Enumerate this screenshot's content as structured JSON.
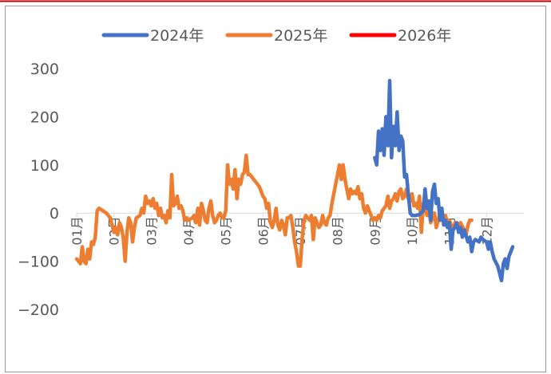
{
  "chart_data": {
    "type": "line",
    "title": "",
    "xlabel": "",
    "ylabel": "",
    "ylim": [
      -200,
      300
    ],
    "yticks": [
      300,
      200,
      100,
      0,
      -100,
      -200
    ],
    "ytick_labels": [
      "300",
      "200",
      "100",
      "0",
      "−100",
      "−200"
    ],
    "grid": false,
    "legend_position": "top",
    "x_domain": [
      0,
      12
    ],
    "month_labels": [
      "01月",
      "02月",
      "03月",
      "04月",
      "05月",
      "06月",
      "07月",
      "08月",
      "09月",
      "10月",
      "11月",
      "12月"
    ],
    "series": [
      {
        "name": "2024年",
        "color": "#4472C4",
        "points": [
          [
            8.0,
            115
          ],
          [
            8.05,
            100
          ],
          [
            8.1,
            170
          ],
          [
            8.15,
            130
          ],
          [
            8.2,
            175
          ],
          [
            8.25,
            120
          ],
          [
            8.3,
            200
          ],
          [
            8.35,
            140
          ],
          [
            8.4,
            275
          ],
          [
            8.45,
            115
          ],
          [
            8.5,
            180
          ],
          [
            8.55,
            140
          ],
          [
            8.6,
            210
          ],
          [
            8.65,
            130
          ],
          [
            8.7,
            160
          ],
          [
            8.75,
            150
          ],
          [
            8.8,
            75
          ],
          [
            8.85,
            80
          ],
          [
            8.9,
            40
          ],
          [
            8.95,
            0
          ],
          [
            9.0,
            -5
          ],
          [
            9.1,
            -5
          ],
          [
            9.2,
            -3
          ],
          [
            9.3,
            5
          ],
          [
            9.35,
            50
          ],
          [
            9.4,
            10
          ],
          [
            9.45,
            25
          ],
          [
            9.5,
            -15
          ],
          [
            9.55,
            45
          ],
          [
            9.6,
            60
          ],
          [
            9.65,
            20
          ],
          [
            9.7,
            30
          ],
          [
            9.75,
            -15
          ],
          [
            9.8,
            10
          ],
          [
            9.85,
            -25
          ],
          [
            9.9,
            -15
          ],
          [
            9.95,
            -30
          ],
          [
            10.0,
            -20
          ],
          [
            10.05,
            -75
          ],
          [
            10.1,
            -35
          ],
          [
            10.15,
            -30
          ],
          [
            10.2,
            -20
          ],
          [
            10.25,
            -40
          ],
          [
            10.3,
            -30
          ],
          [
            10.35,
            -50
          ],
          [
            10.4,
            -35
          ],
          [
            10.5,
            -60
          ],
          [
            10.55,
            -50
          ],
          [
            10.6,
            -80
          ],
          [
            10.65,
            -60
          ],
          [
            10.7,
            -55
          ],
          [
            10.8,
            -60
          ],
          [
            10.85,
            -50
          ],
          [
            10.9,
            -55
          ],
          [
            11.0,
            -60
          ],
          [
            11.05,
            -75
          ],
          [
            11.1,
            -60
          ],
          [
            11.15,
            -80
          ],
          [
            11.2,
            -95
          ],
          [
            11.3,
            -110
          ],
          [
            11.4,
            -140
          ],
          [
            11.45,
            -105
          ],
          [
            11.5,
            -95
          ],
          [
            11.55,
            -115
          ],
          [
            11.6,
            -90
          ],
          [
            11.65,
            -80
          ],
          [
            11.7,
            -70
          ]
        ]
      },
      {
        "name": "2025年",
        "color": "#ED7D31",
        "points": [
          [
            0.0,
            -95
          ],
          [
            0.1,
            -105
          ],
          [
            0.15,
            -70
          ],
          [
            0.2,
            -100
          ],
          [
            0.25,
            -105
          ],
          [
            0.3,
            -75
          ],
          [
            0.35,
            -95
          ],
          [
            0.4,
            -60
          ],
          [
            0.45,
            -65
          ],
          [
            0.5,
            -50
          ],
          [
            0.55,
            5
          ],
          [
            0.6,
            10
          ],
          [
            0.7,
            5
          ],
          [
            0.8,
            0
          ],
          [
            0.9,
            -10
          ],
          [
            0.95,
            -25
          ],
          [
            1.0,
            -40
          ],
          [
            1.05,
            -30
          ],
          [
            1.1,
            -45
          ],
          [
            1.15,
            -20
          ],
          [
            1.2,
            -30
          ],
          [
            1.25,
            -50
          ],
          [
            1.3,
            -100
          ],
          [
            1.35,
            -40
          ],
          [
            1.4,
            -10
          ],
          [
            1.45,
            -20
          ],
          [
            1.5,
            -60
          ],
          [
            1.55,
            -30
          ],
          [
            1.6,
            -10
          ],
          [
            1.7,
            -5
          ],
          [
            1.75,
            10
          ],
          [
            1.8,
            0
          ],
          [
            1.85,
            35
          ],
          [
            1.9,
            20
          ],
          [
            1.95,
            25
          ],
          [
            2.0,
            15
          ],
          [
            2.05,
            30
          ],
          [
            2.1,
            10
          ],
          [
            2.15,
            20
          ],
          [
            2.2,
            -5
          ],
          [
            2.25,
            10
          ],
          [
            2.3,
            -10
          ],
          [
            2.35,
            -5
          ],
          [
            2.4,
            -20
          ],
          [
            2.45,
            5
          ],
          [
            2.5,
            -10
          ],
          [
            2.55,
            80
          ],
          [
            2.6,
            15
          ],
          [
            2.65,
            20
          ],
          [
            2.7,
            35
          ],
          [
            2.75,
            10
          ],
          [
            2.8,
            15
          ],
          [
            2.85,
            5
          ],
          [
            2.9,
            -15
          ],
          [
            2.95,
            -10
          ],
          [
            3.0,
            -15
          ],
          [
            3.1,
            -10
          ],
          [
            3.15,
            -5
          ],
          [
            3.2,
            -20
          ],
          [
            3.25,
            10
          ],
          [
            3.3,
            -25
          ],
          [
            3.35,
            20
          ],
          [
            3.4,
            5
          ],
          [
            3.45,
            -15
          ],
          [
            3.5,
            -20
          ],
          [
            3.55,
            10
          ],
          [
            3.6,
            25
          ],
          [
            3.65,
            -5
          ],
          [
            3.7,
            -20
          ],
          [
            3.75,
            -15
          ],
          [
            3.8,
            -5
          ],
          [
            3.85,
            0
          ],
          [
            3.9,
            -10
          ],
          [
            3.95,
            -10
          ],
          [
            4.0,
            5
          ],
          [
            4.05,
            100
          ],
          [
            4.1,
            60
          ],
          [
            4.15,
            70
          ],
          [
            4.2,
            50
          ],
          [
            4.25,
            90
          ],
          [
            4.3,
            30
          ],
          [
            4.35,
            70
          ],
          [
            4.4,
            60
          ],
          [
            4.45,
            80
          ],
          [
            4.5,
            85
          ],
          [
            4.55,
            120
          ],
          [
            4.6,
            80
          ],
          [
            4.65,
            80
          ],
          [
            4.7,
            75
          ],
          [
            4.8,
            65
          ],
          [
            4.9,
            55
          ],
          [
            5.0,
            35
          ],
          [
            5.05,
            30
          ],
          [
            5.1,
            10
          ],
          [
            5.15,
            20
          ],
          [
            5.2,
            -20
          ],
          [
            5.25,
            -30
          ],
          [
            5.3,
            -15
          ],
          [
            5.35,
            10
          ],
          [
            5.4,
            -25
          ],
          [
            5.45,
            -35
          ],
          [
            5.5,
            -15
          ],
          [
            5.55,
            -25
          ],
          [
            5.6,
            -45
          ],
          [
            5.65,
            -10
          ],
          [
            5.7,
            -10
          ],
          [
            5.75,
            -5
          ],
          [
            5.8,
            -30
          ],
          [
            5.85,
            -60
          ],
          [
            5.9,
            -80
          ],
          [
            5.95,
            -110
          ],
          [
            6.0,
            -110
          ],
          [
            6.05,
            -55
          ],
          [
            6.1,
            -15
          ],
          [
            6.15,
            -5
          ],
          [
            6.2,
            -10
          ],
          [
            6.25,
            -15
          ],
          [
            6.3,
            -5
          ],
          [
            6.35,
            -55
          ],
          [
            6.4,
            -10
          ],
          [
            6.45,
            -20
          ],
          [
            6.5,
            -30
          ],
          [
            6.55,
            -25
          ],
          [
            6.6,
            -5
          ],
          [
            6.65,
            -20
          ],
          [
            6.7,
            -25
          ],
          [
            6.75,
            -10
          ],
          [
            6.8,
            -5
          ],
          [
            6.85,
            20
          ],
          [
            6.9,
            40
          ],
          [
            6.95,
            60
          ],
          [
            7.0,
            80
          ],
          [
            7.05,
            100
          ],
          [
            7.1,
            70
          ],
          [
            7.15,
            100
          ],
          [
            7.2,
            70
          ],
          [
            7.25,
            50
          ],
          [
            7.3,
            30
          ],
          [
            7.35,
            50
          ],
          [
            7.4,
            40
          ],
          [
            7.45,
            45
          ],
          [
            7.5,
            40
          ],
          [
            7.55,
            55
          ],
          [
            7.6,
            30
          ],
          [
            7.65,
            40
          ],
          [
            7.7,
            10
          ],
          [
            7.75,
            0
          ],
          [
            7.8,
            15
          ],
          [
            7.85,
            5
          ],
          [
            7.9,
            -5
          ],
          [
            7.95,
            -15
          ],
          [
            8.0,
            -10
          ],
          [
            8.05,
            -15
          ],
          [
            8.1,
            -5
          ],
          [
            8.15,
            -10
          ],
          [
            8.2,
            5
          ],
          [
            8.25,
            10
          ],
          [
            8.3,
            15
          ],
          [
            8.35,
            35
          ],
          [
            8.4,
            10
          ],
          [
            8.45,
            25
          ],
          [
            8.5,
            30
          ],
          [
            8.55,
            40
          ],
          [
            8.6,
            25
          ],
          [
            8.65,
            45
          ],
          [
            8.7,
            50
          ],
          [
            8.75,
            30
          ],
          [
            8.8,
            35
          ],
          [
            8.85,
            50
          ],
          [
            8.9,
            30
          ],
          [
            8.95,
            25
          ],
          [
            9.0,
            40
          ],
          [
            9.05,
            15
          ],
          [
            9.1,
            20
          ],
          [
            9.15,
            10
          ],
          [
            9.2,
            35
          ],
          [
            9.25,
            -40
          ],
          [
            9.3,
            20
          ],
          [
            9.35,
            10
          ],
          [
            9.4,
            -5
          ],
          [
            9.45,
            15
          ],
          [
            9.5,
            -20
          ],
          [
            9.55,
            -10
          ],
          [
            9.6,
            0
          ],
          [
            9.65,
            -30
          ],
          [
            9.7,
            -15
          ],
          [
            9.75,
            0
          ],
          [
            9.8,
            -10
          ],
          [
            9.85,
            -20
          ],
          [
            9.9,
            -5
          ],
          [
            9.95,
            -25
          ],
          [
            10.0,
            -15
          ],
          [
            10.05,
            -25
          ],
          [
            10.1,
            -35
          ],
          [
            10.15,
            -20
          ],
          [
            10.2,
            -30
          ],
          [
            10.3,
            -20
          ],
          [
            10.4,
            -35
          ],
          [
            10.45,
            -45
          ],
          [
            10.5,
            -25
          ],
          [
            10.55,
            -15
          ],
          [
            10.6,
            -15
          ]
        ]
      },
      {
        "name": "2026年",
        "color": "#FF0000",
        "points": []
      }
    ]
  }
}
